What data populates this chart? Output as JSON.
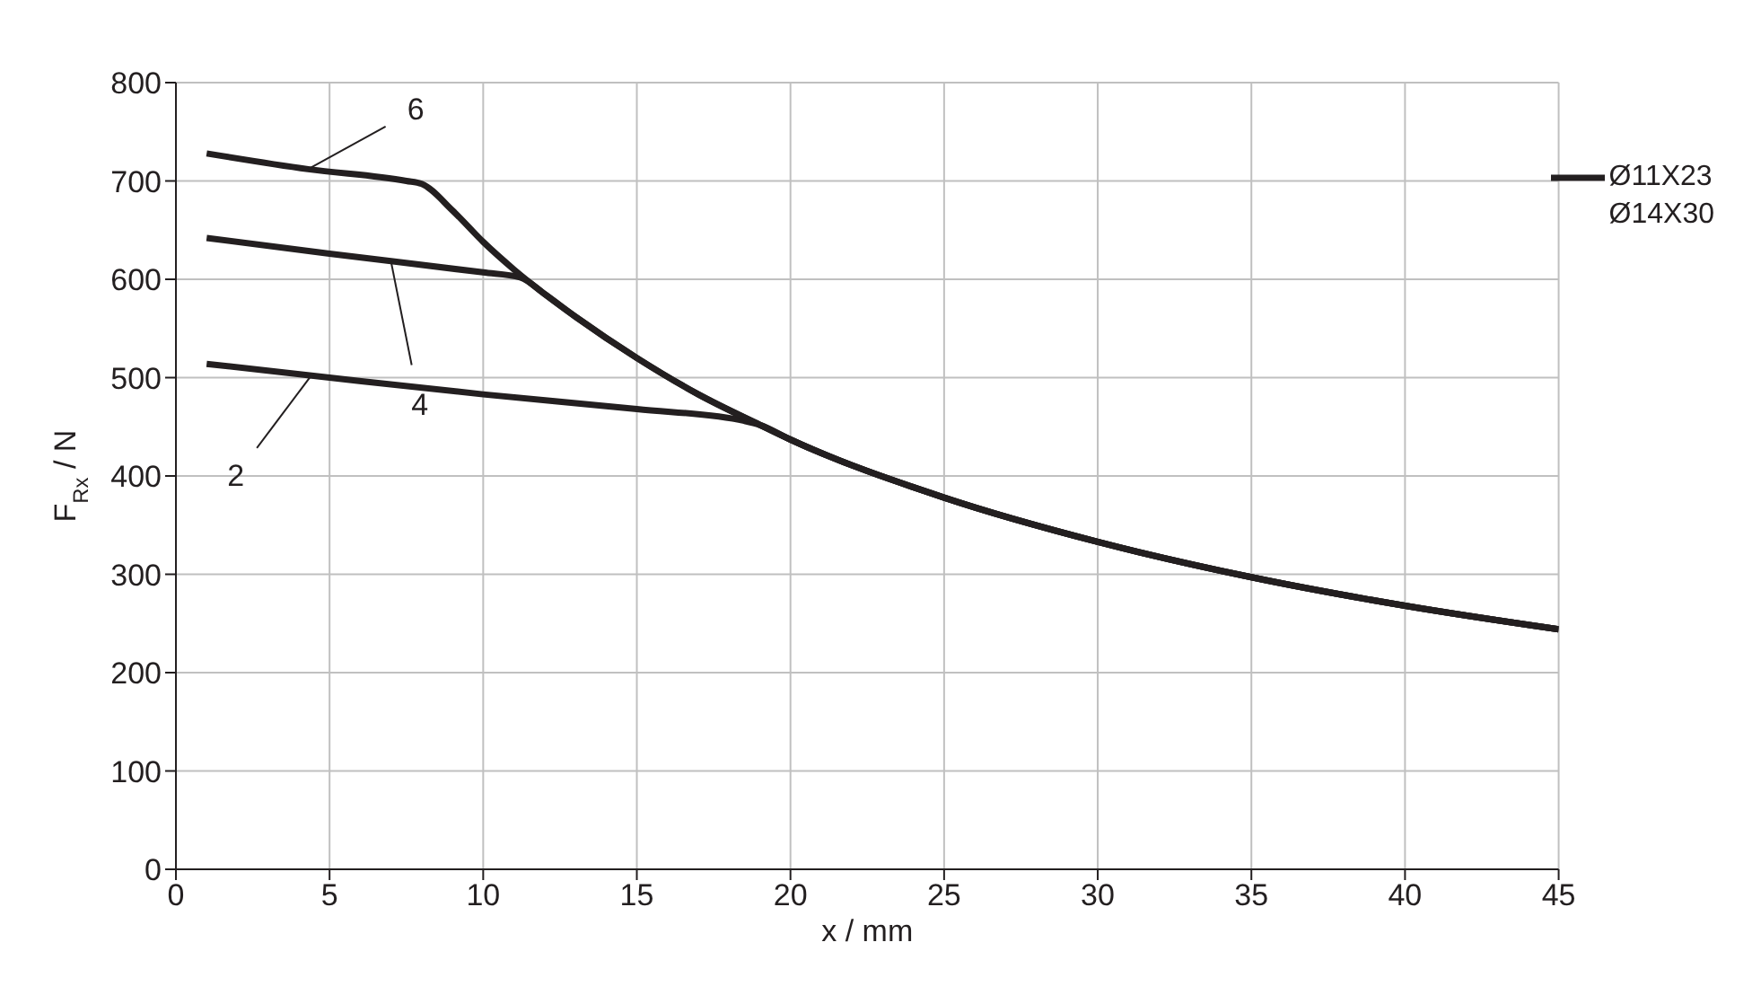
{
  "chart_data": {
    "type": "line",
    "xlabel": "x / mm",
    "ylabel": "F$_{Rx}$ / N",
    "xlim": [
      0,
      45
    ],
    "xticks": [
      0,
      5,
      10,
      15,
      20,
      25,
      30,
      35,
      40,
      45
    ],
    "ylim": [
      0,
      800
    ],
    "yticks": [
      0,
      100,
      200,
      300,
      400,
      500,
      600,
      700,
      800
    ],
    "grid": true,
    "legend": "top right",
    "marker": "none",
    "line_style": "solid",
    "series": [
      {
        "name": "Ø11X23 Ø14X30",
        "color": "#231f20",
        "x": [
          1,
          5,
          10,
          15,
          18.5,
          19,
          20,
          25,
          30,
          35,
          40,
          45
        ],
        "values": [
          514,
          500,
          483,
          468,
          456,
          452,
          437,
          378,
          333,
          297,
          268,
          244
        ]
      },
      {
        "color": "#231f20",
        "x": [
          1,
          5,
          10,
          11.2,
          12,
          13,
          15,
          17,
          19,
          20,
          25,
          30,
          35,
          40,
          45
        ],
        "values": [
          642,
          626,
          607,
          602,
          585,
          562,
          520,
          483,
          452,
          437,
          378,
          333,
          297,
          268,
          244
        ]
      },
      {
        "color": "#231f20",
        "x": [
          1,
          4.3,
          7.5,
          8,
          9,
          10,
          11,
          12,
          13,
          15,
          17,
          19,
          20,
          25,
          30,
          35,
          40,
          45
        ],
        "values": [
          728,
          712,
          700,
          697,
          670,
          638,
          610,
          585,
          562,
          520,
          483,
          452,
          437,
          378,
          333,
          297,
          268,
          244
        ]
      }
    ],
    "annotations": [
      {
        "text": "2",
        "x": 4.4,
        "y": 502
      },
      {
        "text": "4",
        "x": 7,
        "y": 618
      },
      {
        "text": "6",
        "x": 4.3,
        "y": 712
      }
    ]
  }
}
